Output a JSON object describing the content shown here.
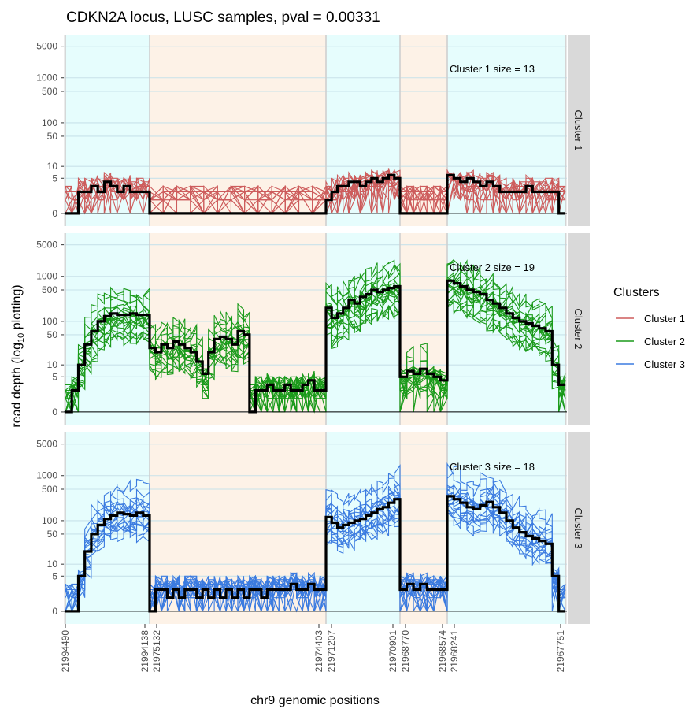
{
  "chart_data": {
    "type": "line",
    "title": "CDKN2A locus, LUSC samples, pval = 0.00331",
    "xlabel": "chr9 genomic positions",
    "ylabel_main": "read depth (log",
    "ylabel_sub": "10",
    "ylabel_tail": " plotting)",
    "y_scale": "log10(depth + 1)",
    "y_ticks": [
      0,
      5,
      10,
      50,
      100,
      500,
      1000,
      5000
    ],
    "y_tick_labels": [
      "0",
      "5",
      "10",
      "50",
      "100",
      "500",
      "1000",
      "5000"
    ],
    "x_tick_labels": [
      "21994490",
      "21994138",
      "21975132",
      "21974403",
      "21971207",
      "21970901",
      "21968770",
      "21968574",
      "21968241",
      "21967751"
    ],
    "grid": true,
    "legend_position": "right",
    "legend": {
      "title": "Clusters",
      "entries": [
        "Cluster 1",
        "Cluster 2",
        "Cluster 3"
      ],
      "colors": [
        "#cd5c5c",
        "#1a9a1a",
        "#3b7be0"
      ]
    },
    "region_colors": {
      "exon": "#e6fdfd",
      "intron": "#fdf2e7"
    },
    "regions": [
      {
        "kind": "exon",
        "start": "21994490",
        "end": "21994138"
      },
      {
        "kind": "intron",
        "start": "21975132",
        "end": "21974403"
      },
      {
        "kind": "exon",
        "start": "21971207",
        "end": "21970901"
      },
      {
        "kind": "intron",
        "start": "21968770",
        "end": "21968574"
      },
      {
        "kind": "exon",
        "start": "21968241",
        "end": "21967751"
      }
    ],
    "panels": [
      {
        "strip_label": "Cluster 1",
        "annotation": "Cluster 1 size = 13",
        "color": "#cd5c5c",
        "n_samples": 13,
        "median_profile": [
          {
            "region": 1,
            "depths": [
              0,
              0,
              2,
              2,
              3,
              2,
              4,
              3,
              2,
              3,
              2,
              2,
              2
            ]
          },
          {
            "region": 2,
            "depths": [
              0,
              0,
              0,
              0,
              0,
              0,
              0,
              0,
              0,
              0,
              0,
              0,
              0
            ]
          },
          {
            "region": 3,
            "depths": [
              1,
              2,
              3,
              3,
              4,
              4,
              3,
              4,
              5,
              4,
              5,
              6,
              5
            ]
          },
          {
            "region": 4,
            "depths": [
              0,
              0,
              0,
              0,
              0,
              0,
              0
            ]
          },
          {
            "region": 5,
            "depths": [
              6,
              5,
              4,
              5,
              4,
              3,
              4,
              3,
              2,
              2,
              2,
              2,
              3,
              2,
              2,
              2,
              2,
              0
            ]
          }
        ]
      },
      {
        "strip_label": "Cluster 2",
        "annotation": "Cluster 2 size = 19",
        "color": "#1a9a1a",
        "n_samples": 19,
        "median_profile": [
          {
            "region": 1,
            "depths": [
              0,
              2,
              10,
              30,
              60,
              100,
              130,
              150,
              140,
              140,
              150,
              140,
              140
            ]
          },
          {
            "region": 2,
            "depths": [
              25,
              20,
              30,
              25,
              35,
              30,
              25,
              20,
              12,
              6,
              20,
              40,
              45,
              40,
              30,
              60,
              50,
              0,
              2,
              2,
              3,
              2,
              2,
              3,
              2,
              2,
              3,
              4,
              2,
              2
            ]
          },
          {
            "region": 3,
            "depths": [
              200,
              120,
              150,
              200,
              300,
              250,
              350,
              400,
              500,
              450,
              500,
              550,
              600
            ]
          },
          {
            "region": 4,
            "depths": [
              5,
              7,
              6,
              8,
              6,
              5,
              4
            ]
          },
          {
            "region": 5,
            "depths": [
              800,
              700,
              600,
              500,
              450,
              400,
              300,
              250,
              200,
              150,
              120,
              100,
              90,
              80,
              70,
              60,
              10,
              3
            ]
          }
        ]
      },
      {
        "strip_label": "Cluster 3",
        "annotation": "Cluster 3 size = 18",
        "color": "#3b7be0",
        "n_samples": 18,
        "median_profile": [
          {
            "region": 1,
            "depths": [
              0,
              0,
              5,
              20,
              50,
              80,
              110,
              130,
              150,
              140,
              130,
              150,
              130
            ]
          },
          {
            "region": 2,
            "depths": [
              0,
              2,
              2,
              1,
              2,
              1,
              2,
              2,
              1,
              2,
              1,
              2,
              1,
              2,
              1,
              2,
              1,
              2,
              2,
              1,
              2,
              2,
              2,
              2,
              3,
              2,
              2,
              3,
              2,
              2
            ]
          },
          {
            "region": 3,
            "depths": [
              120,
              90,
              70,
              80,
              90,
              100,
              110,
              130,
              150,
              180,
              200,
              250,
              300
            ]
          },
          {
            "region": 4,
            "depths": [
              2,
              3,
              2,
              3,
              2,
              2,
              2
            ]
          },
          {
            "region": 5,
            "depths": [
              350,
              300,
              250,
              200,
              180,
              220,
              260,
              200,
              150,
              100,
              70,
              55,
              45,
              40,
              35,
              30,
              5,
              0
            ]
          }
        ]
      }
    ]
  }
}
